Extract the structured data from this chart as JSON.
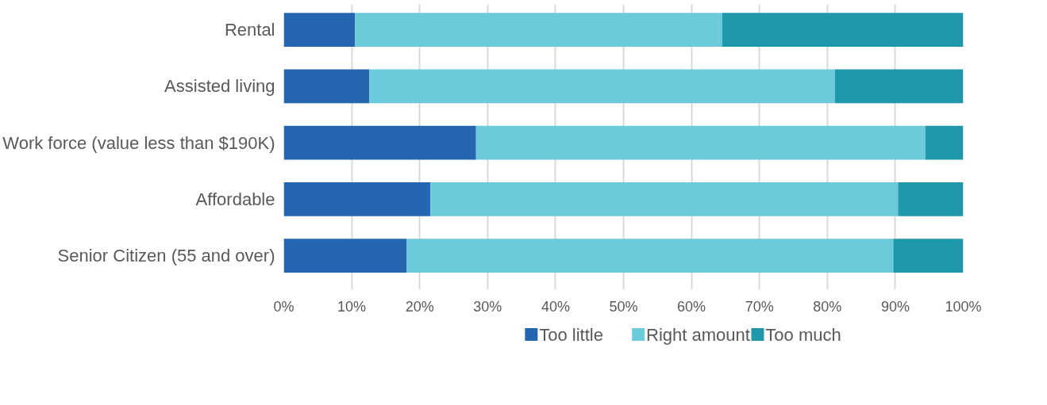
{
  "chart_data": {
    "type": "bar",
    "orientation": "horizontal",
    "stacked": true,
    "categories": [
      "Rental",
      "Assisted living",
      "Work force (value less than $190K)",
      "Affordable",
      "Senior Citizen (55 and over)"
    ],
    "series": [
      {
        "name": "Too little",
        "color": "#2566b0",
        "values": [
          10.5,
          12.6,
          28.3,
          21.6,
          18.1
        ]
      },
      {
        "name": "Right amount",
        "color": "#6ccbdb",
        "values": [
          54.0,
          68.5,
          66.1,
          68.8,
          71.6
        ]
      },
      {
        "name": "Too much",
        "color": "#1f99aa",
        "values": [
          35.5,
          18.9,
          5.6,
          9.6,
          10.3
        ]
      }
    ],
    "xlim": [
      0,
      100
    ],
    "xticks": [
      {
        "value": 0,
        "label": "0%"
      },
      {
        "value": 10,
        "label": "10%"
      },
      {
        "value": 20,
        "label": "20%"
      },
      {
        "value": 30,
        "label": "30%"
      },
      {
        "value": 40,
        "label": "40%"
      },
      {
        "value": 50,
        "label": "50%"
      },
      {
        "value": 60,
        "label": "60%"
      },
      {
        "value": 70,
        "label": "70%"
      },
      {
        "value": 80,
        "label": "80%"
      },
      {
        "value": 90,
        "label": "90%"
      },
      {
        "value": 100,
        "label": "100%"
      }
    ],
    "grid": "x",
    "legend": "bottom"
  }
}
